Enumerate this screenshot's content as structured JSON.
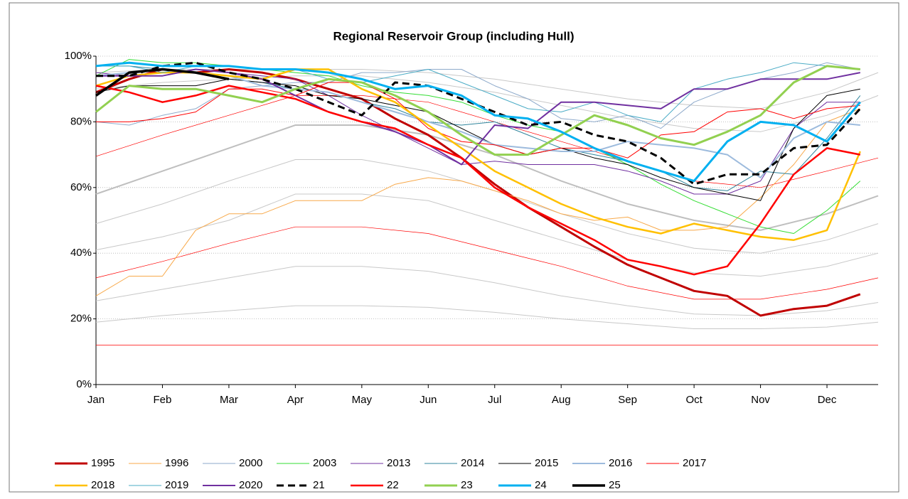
{
  "chart_data": {
    "type": "line",
    "title": "Regional Reservoir Group (including Hull)",
    "xlim": [
      0,
      11.77
    ],
    "xticks": [
      {
        "value": 0,
        "label": "Jan"
      },
      {
        "value": 1,
        "label": "Feb"
      },
      {
        "value": 2,
        "label": "Mar"
      },
      {
        "value": 3,
        "label": "Apr"
      },
      {
        "value": 4,
        "label": "May"
      },
      {
        "value": 5,
        "label": "Jun"
      },
      {
        "value": 6,
        "label": "Jul"
      },
      {
        "value": 7,
        "label": "Aug"
      },
      {
        "value": 8,
        "label": "Sep"
      },
      {
        "value": 9,
        "label": "Oct"
      },
      {
        "value": 10,
        "label": "Nov"
      },
      {
        "value": 11,
        "label": "Dec"
      }
    ],
    "ylim": [
      0,
      100
    ],
    "yticks": [
      {
        "value": 0,
        "label": "0%"
      },
      {
        "value": 20,
        "label": "20%"
      },
      {
        "value": 40,
        "label": "40%"
      },
      {
        "value": 60,
        "label": "60%"
      },
      {
        "value": 80,
        "label": "80%"
      },
      {
        "value": 100,
        "label": "100%"
      }
    ],
    "grid": true,
    "x": [
      0,
      0.5,
      1,
      1.5,
      2,
      2.5,
      3,
      3.5,
      4,
      4.5,
      5,
      5.5,
      6,
      6.5,
      7,
      7.5,
      8,
      8.5,
      9,
      9.5,
      10,
      10.5,
      11,
      11.5
    ],
    "reference_x": [
      0,
      1,
      2,
      3,
      4,
      5,
      6,
      7,
      8,
      9,
      10,
      11,
      11.77
    ],
    "reference_lines": [
      {
        "color": "#c8c8c8",
        "width": 1,
        "values": [
          95,
          96,
          96,
          96,
          96,
          95,
          93,
          90,
          87,
          85,
          84,
          89,
          95
        ]
      },
      {
        "color": "#c8c8c8",
        "width": 1,
        "values": [
          90,
          92,
          93,
          94,
          94,
          92,
          89,
          85,
          81,
          78,
          77,
          82,
          88
        ]
      },
      {
        "color": "#bfbfbf",
        "width": 2,
        "values": [
          58,
          65,
          72,
          79,
          79,
          76,
          70,
          62,
          55,
          50,
          47,
          52,
          57.5
        ]
      },
      {
        "color": "#c8c8c8",
        "width": 1,
        "values": [
          49,
          55,
          62,
          68.5,
          68.5,
          65,
          59,
          52,
          46,
          41.5,
          40,
          44,
          49
        ]
      },
      {
        "color": "#c8c8c8",
        "width": 1,
        "values": [
          41,
          45,
          50,
          58,
          58,
          56,
          50,
          44,
          38,
          34,
          33,
          36,
          40
        ]
      },
      {
        "color": "#c8c8c8",
        "width": 1,
        "values": [
          25.5,
          29,
          32.5,
          36,
          36,
          34.5,
          31,
          27,
          24,
          21.5,
          21,
          22.5,
          25
        ]
      },
      {
        "color": "#c8c8c8",
        "width": 1,
        "values": [
          19,
          21,
          22.5,
          24,
          24,
          23.5,
          22,
          20,
          18.5,
          17,
          17,
          17.5,
          19
        ]
      },
      {
        "color": "#ff0000",
        "width": 0.7,
        "values": [
          69.5,
          76,
          82,
          88,
          88,
          86,
          80,
          74,
          68,
          62,
          60,
          65,
          69
        ]
      },
      {
        "color": "#ff0000",
        "width": 0.7,
        "values": [
          32.5,
          37.5,
          43,
          48,
          48,
          46,
          41,
          36,
          30,
          26,
          26,
          29,
          32.5
        ]
      },
      {
        "color": "#ff0000",
        "width": 0.7,
        "values": [
          12,
          12,
          12,
          12,
          12,
          12,
          12,
          12,
          12,
          12,
          12,
          12,
          12
        ]
      }
    ],
    "series": [
      {
        "name": "1995",
        "color": "#c00000",
        "width": 3,
        "values": [
          89,
          93,
          96,
          95,
          96,
          95,
          93,
          90,
          87,
          81,
          76,
          69,
          61,
          54,
          48,
          42,
          36.5,
          32.5,
          28.5,
          27,
          21,
          23,
          24,
          27.5
        ]
      },
      {
        "name": "1996",
        "color": "#f8a94a",
        "width": 1,
        "values": [
          27,
          33,
          33,
          47,
          52,
          52,
          56,
          56,
          56,
          61,
          63,
          62,
          59,
          56,
          52,
          50,
          51,
          47,
          47,
          48,
          57,
          67,
          80,
          84
        ]
      },
      {
        "name": "2000",
        "color": "#8eaacb",
        "width": 1,
        "values": [
          80,
          79,
          82,
          84,
          90,
          91,
          92,
          92,
          95,
          95,
          96,
          96,
          91,
          87,
          81,
          80,
          82,
          78,
          86,
          90,
          93,
          95,
          98,
          96
        ]
      },
      {
        "name": "2003",
        "color": "#33dd33",
        "width": 1,
        "values": [
          94,
          99,
          98,
          98,
          97,
          96,
          95,
          94,
          91,
          89,
          88,
          86,
          82,
          79,
          77,
          72,
          67,
          61,
          56,
          52,
          48,
          46,
          53,
          62
        ]
      },
      {
        "name": "2013",
        "color": "#7030a0",
        "width": 1,
        "values": [
          95,
          94,
          94,
          96,
          95,
          94,
          93,
          88,
          82,
          77,
          72,
          67,
          68,
          67,
          67,
          67,
          65,
          62,
          58,
          58,
          62,
          78,
          86,
          86
        ]
      },
      {
        "name": "2014",
        "color": "#31859c",
        "width": 1,
        "values": [
          97,
          97,
          96,
          95,
          93,
          92,
          90,
          89,
          86,
          84,
          80,
          79,
          80,
          76,
          72,
          70,
          68,
          65,
          60,
          59,
          65,
          64,
          75,
          88
        ]
      },
      {
        "name": "2015",
        "color": "#000000",
        "width": 1,
        "values": [
          89,
          91,
          91,
          91,
          93,
          92,
          91,
          88,
          87,
          85,
          83,
          78,
          73,
          70,
          72,
          69,
          67,
          63,
          60,
          58,
          56,
          78,
          88,
          90
        ]
      },
      {
        "name": "2016",
        "color": "#9dbbdd",
        "width": 2,
        "values": [
          94,
          95,
          96,
          95,
          94,
          91,
          90,
          89,
          86,
          83,
          80,
          77,
          73,
          72,
          71,
          71,
          74,
          73,
          72,
          70,
          63,
          75,
          80,
          79
        ]
      },
      {
        "name": "2017",
        "color": "#ff0000",
        "width": 1,
        "values": [
          80,
          80,
          81,
          83,
          90,
          90,
          88,
          92,
          92,
          87,
          78,
          74,
          73,
          70,
          72,
          72,
          69,
          76,
          77,
          83,
          84,
          81,
          84,
          85
        ]
      },
      {
        "name": "2018",
        "color": "#ffc000",
        "width": 2.5,
        "values": [
          91,
          94,
          95,
          95,
          94,
          93,
          96,
          96,
          90,
          86,
          79,
          72,
          65,
          60,
          55,
          51,
          48,
          46,
          49,
          47,
          45,
          44,
          47,
          71
        ]
      },
      {
        "name": "2019",
        "color": "#4bacc6",
        "width": 1,
        "values": [
          97,
          97,
          95,
          97,
          97,
          96,
          96,
          93,
          92,
          94,
          96,
          92,
          88,
          84,
          83,
          86,
          82,
          80,
          90,
          93,
          95,
          98,
          97,
          96
        ]
      },
      {
        "name": "2020",
        "color": "#7030a0",
        "width": 2,
        "values": [
          94,
          94,
          94,
          96,
          95,
          93,
          88,
          83,
          80,
          77,
          73,
          67,
          79,
          78,
          86,
          86,
          85,
          84,
          90,
          90,
          93,
          93,
          93,
          95
        ]
      },
      {
        "name": "21",
        "color": "#000000",
        "width": 3,
        "dashed": true,
        "values": [
          94,
          94,
          97,
          98,
          95,
          93,
          90,
          86,
          82,
          92,
          91,
          87,
          83,
          79,
          80,
          76,
          74,
          69,
          61,
          64,
          64,
          72,
          73,
          84
        ]
      },
      {
        "name": "22",
        "color": "#ff0000",
        "width": 2.5,
        "values": [
          91,
          89,
          86,
          88,
          91,
          89,
          87,
          83,
          80,
          78,
          73,
          69,
          60,
          54,
          49,
          44,
          38,
          36,
          33.5,
          36,
          49,
          64,
          72,
          70
        ]
      },
      {
        "name": "23",
        "color": "#92d050",
        "width": 3,
        "values": [
          83,
          91,
          90,
          90,
          88,
          86,
          90,
          93,
          92,
          88,
          83,
          76,
          70,
          70,
          76,
          82,
          79,
          75,
          73,
          77,
          82,
          92,
          97,
          96
        ]
      },
      {
        "name": "24",
        "color": "#00b0f0",
        "width": 3,
        "values": [
          97,
          98,
          97,
          97,
          97,
          96,
          96,
          95,
          93,
          90,
          91,
          88,
          82,
          81,
          77,
          72,
          68,
          65,
          62,
          74,
          80,
          79,
          74,
          86
        ]
      },
      {
        "name": "25",
        "color": "#000000",
        "width": 3.5,
        "values": [
          88,
          95,
          96,
          95,
          93,
          null,
          null,
          null,
          null,
          null,
          null,
          null,
          null,
          null,
          null,
          null,
          null,
          null,
          null,
          null,
          null,
          null,
          null,
          null
        ]
      }
    ]
  }
}
